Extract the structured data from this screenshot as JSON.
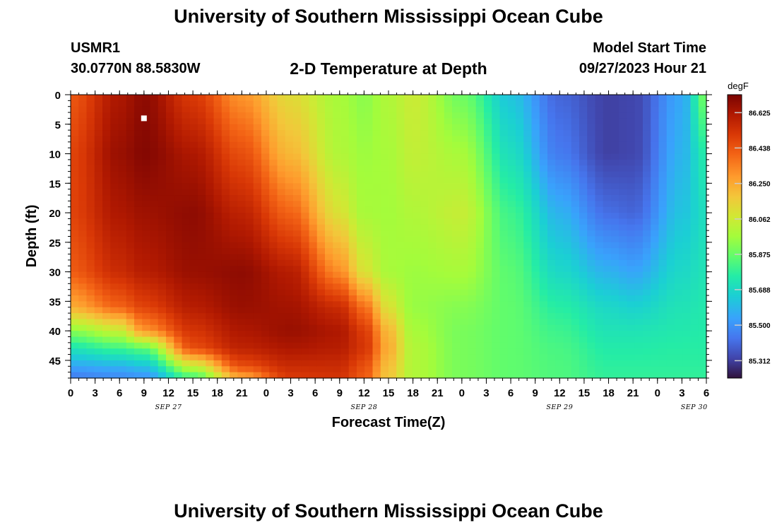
{
  "header": {
    "title": "University of Southern Mississippi Ocean Cube",
    "station_id": "USMR1",
    "coordinates": "30.0770N  88.5830W",
    "plot_title": "2-D Temperature at Depth",
    "start_label": "Model Start Time",
    "start_value": "09/27/2023 Hour 21"
  },
  "footer": {
    "title": "University of Southern Mississippi Ocean Cube"
  },
  "chart_data": {
    "type": "heatmap",
    "title": "2-D Temperature at Depth",
    "xlabel": "Forecast Time(Z)",
    "ylabel": "Depth (ft)",
    "x_ticks": [
      "0",
      "3",
      "6",
      "9",
      "12",
      "15",
      "18",
      "21",
      "0",
      "3",
      "6",
      "9",
      "12",
      "15",
      "18",
      "21",
      "0",
      "3",
      "6",
      "9",
      "12",
      "15",
      "18",
      "21",
      "0",
      "3",
      "6"
    ],
    "x_start": "2023-09-27T00Z",
    "x_end": "2023-09-30T06Z",
    "date_labels": [
      "SEP 27",
      "SEP 28",
      "SEP 29",
      "SEP 30"
    ],
    "y_ticks": [
      "0",
      "5",
      "10",
      "15",
      "20",
      "25",
      "30",
      "35",
      "40",
      "45"
    ],
    "ylim": [
      0,
      48
    ],
    "colorbar": {
      "unit": "degF",
      "ticks": [
        "86.625",
        "86.438",
        "86.250",
        "86.062",
        "85.875",
        "85.688",
        "85.500",
        "85.312"
      ],
      "range": [
        85.22,
        86.72
      ]
    },
    "marker": {
      "time": "2023-09-27T09Z",
      "depth_ft": 4
    },
    "row_depths_ft": [
      0,
      10,
      20,
      30,
      36,
      40,
      43,
      46,
      48
    ],
    "series": [
      {
        "time": "09-27T00Z",
        "temps": [
          86.43,
          86.48,
          86.48,
          86.42,
          86.25,
          85.93,
          85.72,
          85.55,
          85.45
        ]
      },
      {
        "time": "09-27T06Z",
        "temps": [
          86.62,
          86.66,
          86.62,
          86.55,
          86.4,
          86.05,
          85.8,
          85.58,
          85.48
        ]
      },
      {
        "time": "09-27T09Z",
        "temps": [
          86.68,
          86.7,
          86.65,
          86.6,
          86.48,
          86.3,
          85.85,
          85.62,
          85.5
        ]
      },
      {
        "time": "09-27T15Z",
        "temps": [
          86.5,
          86.62,
          86.68,
          86.66,
          86.6,
          86.52,
          86.45,
          86.05,
          85.8
        ]
      },
      {
        "time": "09-27T21Z",
        "temps": [
          86.3,
          86.45,
          86.58,
          86.68,
          86.66,
          86.62,
          86.58,
          86.45,
          86.25
        ]
      },
      {
        "time": "09-28T03Z",
        "temps": [
          86.12,
          86.22,
          86.4,
          86.6,
          86.64,
          86.66,
          86.62,
          86.55,
          86.5
        ]
      },
      {
        "time": "09-28T09Z",
        "temps": [
          85.98,
          86.0,
          86.1,
          86.32,
          86.55,
          86.62,
          86.6,
          86.55,
          86.52
        ]
      },
      {
        "time": "09-28T12Z",
        "temps": [
          85.93,
          85.96,
          85.98,
          86.1,
          86.38,
          86.5,
          86.52,
          86.45,
          86.42
        ]
      },
      {
        "time": "09-28T15Z",
        "temps": [
          86.0,
          85.98,
          85.97,
          85.98,
          86.1,
          86.22,
          86.25,
          86.2,
          86.18
        ]
      },
      {
        "time": "09-28T18Z",
        "temps": [
          86.06,
          86.04,
          86.0,
          85.96,
          85.95,
          85.98,
          86.0,
          86.0,
          86.0
        ]
      },
      {
        "time": "09-29T00Z",
        "temps": [
          85.88,
          85.98,
          86.05,
          85.98,
          85.92,
          85.9,
          85.9,
          85.9,
          85.9
        ]
      },
      {
        "time": "09-29T06Z",
        "temps": [
          85.62,
          85.7,
          85.8,
          85.85,
          85.86,
          85.86,
          85.86,
          85.86,
          85.86
        ]
      },
      {
        "time": "09-29T12Z",
        "temps": [
          85.4,
          85.45,
          85.58,
          85.68,
          85.76,
          85.8,
          85.82,
          85.83,
          85.83
        ]
      },
      {
        "time": "09-29T18Z",
        "temps": [
          85.32,
          85.32,
          85.42,
          85.58,
          85.68,
          85.72,
          85.75,
          85.77,
          85.78
        ]
      },
      {
        "time": "09-29T21Z",
        "temps": [
          85.33,
          85.33,
          85.4,
          85.55,
          85.66,
          85.72,
          85.75,
          85.77,
          85.78
        ]
      },
      {
        "time": "09-30T03Z",
        "temps": [
          85.55,
          85.58,
          85.62,
          85.68,
          85.72,
          85.74,
          85.76,
          85.77,
          85.78
        ]
      },
      {
        "time": "09-30T06Z",
        "temps": [
          85.9,
          85.75,
          85.7,
          85.72,
          85.74,
          85.75,
          85.76,
          85.77,
          85.78
        ]
      }
    ]
  }
}
